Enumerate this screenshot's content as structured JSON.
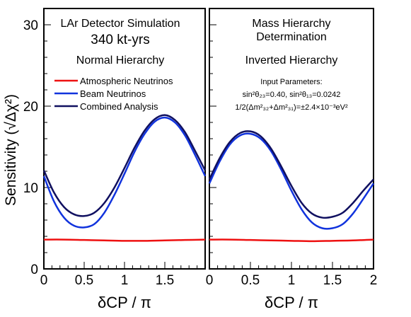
{
  "chart_data": {
    "type": "line",
    "ylabel": "Sensitivity (√Δχ²)",
    "xlabel": "δCP / π",
    "ylim": [
      0,
      32
    ],
    "xlim": [
      0,
      2
    ],
    "grid": false,
    "panels": [
      {
        "id": "left",
        "title_lines": [
          "LAr Detector Simulation",
          "340 kt-yrs"
        ],
        "hierarchy": "Normal Hierarchy",
        "x_tick_labels": [
          "0",
          "0.5",
          "1",
          "1.5"
        ],
        "legend": {
          "placement": "upper-left",
          "entries": [
            "Atmospheric Neutrinos",
            "Beam Neutrinos",
            "Combined Analysis"
          ]
        },
        "series": [
          {
            "name": "Atmospheric Neutrinos",
            "color": "#ee1111",
            "x": [
              0,
              0.25,
              0.5,
              0.75,
              1.0,
              1.25,
              1.5,
              1.75,
              2.0
            ],
            "y": [
              3.6,
              3.6,
              3.55,
              3.5,
              3.45,
              3.45,
              3.5,
              3.55,
              3.6
            ]
          },
          {
            "name": "Beam Neutrinos",
            "color": "#1133dd",
            "x": [
              0,
              0.125,
              0.25,
              0.375,
              0.5,
              0.625,
              0.75,
              0.875,
              1.0,
              1.125,
              1.25,
              1.375,
              1.5,
              1.625,
              1.75,
              1.875,
              2.0
            ],
            "y": [
              11.4,
              8.3,
              6.3,
              5.3,
              5.1,
              5.5,
              6.9,
              9.1,
              11.7,
              14.4,
              16.6,
              18.1,
              18.6,
              18.0,
              16.4,
              14.0,
              11.4
            ]
          },
          {
            "name": "Combined Analysis",
            "color": "#101060",
            "x": [
              0,
              0.125,
              0.25,
              0.375,
              0.5,
              0.625,
              0.75,
              0.875,
              1.0,
              1.125,
              1.25,
              1.375,
              1.5,
              1.625,
              1.75,
              1.875,
              2.0
            ],
            "y": [
              12.1,
              9.4,
              7.6,
              6.7,
              6.5,
              6.9,
              8.1,
              10.0,
              12.4,
              14.9,
              17.0,
              18.4,
              18.9,
              18.3,
              16.8,
              14.5,
              12.1
            ]
          }
        ]
      },
      {
        "id": "right",
        "title_lines": [
          "Mass Hierarchy",
          "Determination"
        ],
        "hierarchy": "Inverted Hierarchy",
        "x_tick_labels": [
          "0",
          "0.5",
          "1",
          "1.5",
          "2"
        ],
        "annotation": {
          "heading": "Input Parameters:",
          "line1": "sin²θ₂₃=0.40, sin²θ₁₃=0.0242",
          "line2": "1/2(Δm²₃₂+Δm²₃₁)=±2.4×10⁻³eV²"
        },
        "series": [
          {
            "name": "Atmospheric Neutrinos",
            "color": "#ee1111",
            "x": [
              0,
              0.25,
              0.5,
              0.75,
              1.0,
              1.25,
              1.5,
              1.75,
              2.0
            ],
            "y": [
              3.6,
              3.6,
              3.55,
              3.5,
              3.45,
              3.4,
              3.45,
              3.5,
              3.6
            ]
          },
          {
            "name": "Beam Neutrinos",
            "color": "#1133dd",
            "x": [
              0,
              0.125,
              0.25,
              0.375,
              0.5,
              0.625,
              0.75,
              0.875,
              1.0,
              1.125,
              1.25,
              1.375,
              1.5,
              1.625,
              1.75,
              1.875,
              2.0
            ],
            "y": [
              10.5,
              13.2,
              15.3,
              16.4,
              16.6,
              16.0,
              14.5,
              12.2,
              9.6,
              7.3,
              5.7,
              5.0,
              5.0,
              5.5,
              6.8,
              8.6,
              10.5
            ]
          },
          {
            "name": "Combined Analysis",
            "color": "#101060",
            "x": [
              0,
              0.125,
              0.25,
              0.375,
              0.5,
              0.625,
              0.75,
              0.875,
              1.0,
              1.125,
              1.25,
              1.375,
              1.5,
              1.625,
              1.75,
              1.875,
              2.0
            ],
            "y": [
              11.0,
              13.6,
              15.6,
              16.7,
              16.9,
              16.3,
              14.8,
              12.6,
              10.2,
              8.1,
              6.8,
              6.3,
              6.4,
              6.9,
              8.1,
              9.6,
              11.0
            ]
          }
        ]
      }
    ],
    "y_tick_labels": [
      "0",
      "10",
      "20",
      "30"
    ]
  }
}
